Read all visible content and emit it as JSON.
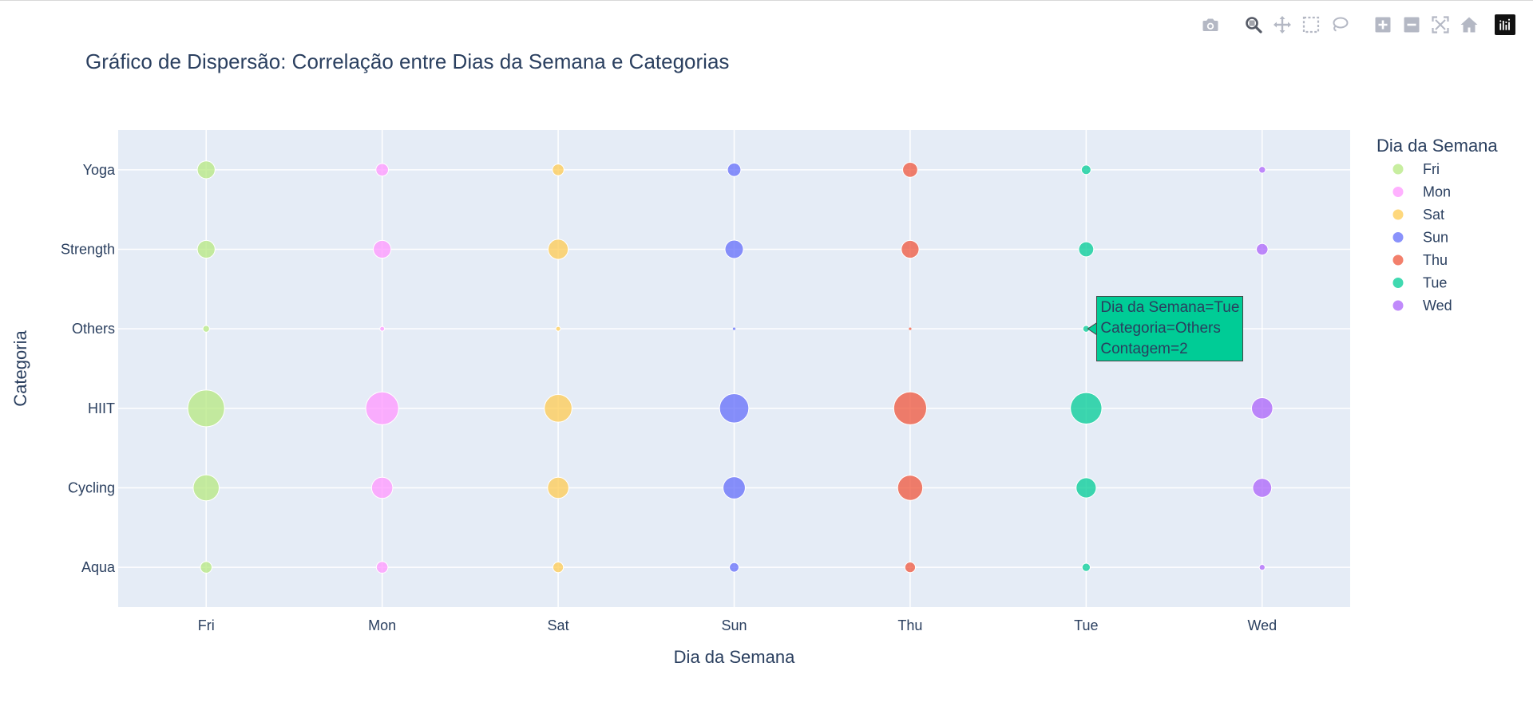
{
  "toolbar": {
    "buttons": [
      {
        "icon": "camera-icon",
        "label": "Download plot as png"
      },
      {
        "icon": "zoom-icon",
        "label": "Zoom",
        "active": true
      },
      {
        "icon": "pan-icon",
        "label": "Pan"
      },
      {
        "icon": "box-select-icon",
        "label": "Box Select"
      },
      {
        "icon": "lasso-select-icon",
        "label": "Lasso Select"
      },
      {
        "icon": "zoom-in-icon",
        "label": "Zoom in"
      },
      {
        "icon": "zoom-out-icon",
        "label": "Zoom out"
      },
      {
        "icon": "autoscale-icon",
        "label": "Autoscale"
      },
      {
        "icon": "reset-axes-icon",
        "label": "Reset axes"
      },
      {
        "icon": "plotly-logo-icon",
        "label": "Plotly"
      }
    ]
  },
  "chart_data": {
    "type": "scatter",
    "title": "Gráfico de Dispersão: Correlação entre Dias da Semana e Categorias",
    "xlabel": "Dia da Semana",
    "ylabel": "Categoria",
    "x_categories": [
      "Fri",
      "Mon",
      "Sat",
      "Sun",
      "Thu",
      "Tue",
      "Wed"
    ],
    "y_categories": [
      "Aqua",
      "Cycling",
      "HIIT",
      "Others",
      "Strength",
      "Yoga"
    ],
    "grid": true,
    "legend": {
      "title": "Dia da Semana",
      "placement": "right"
    },
    "size_metric": "Contagem",
    "series": [
      {
        "name": "Fri",
        "color": "#b6e880",
        "x": "Fri",
        "points": [
          {
            "y": "Yoga",
            "size": 14
          },
          {
            "y": "Strength",
            "size": 14
          },
          {
            "y": "Others",
            "size": 2
          },
          {
            "y": "HIIT",
            "size": 60
          },
          {
            "y": "Cycling",
            "size": 30
          },
          {
            "y": "Aqua",
            "size": 6
          }
        ]
      },
      {
        "name": "Mon",
        "color": "#ff97ff",
        "x": "Mon",
        "points": [
          {
            "y": "Yoga",
            "size": 7
          },
          {
            "y": "Strength",
            "size": 14
          },
          {
            "y": "Others",
            "size": 1
          },
          {
            "y": "HIIT",
            "size": 48
          },
          {
            "y": "Cycling",
            "size": 20
          },
          {
            "y": "Aqua",
            "size": 6
          }
        ]
      },
      {
        "name": "Sat",
        "color": "#fecb52",
        "x": "Sat",
        "points": [
          {
            "y": "Yoga",
            "size": 6
          },
          {
            "y": "Strength",
            "size": 18
          },
          {
            "y": "Others",
            "size": 1
          },
          {
            "y": "HIIT",
            "size": 34
          },
          {
            "y": "Cycling",
            "size": 20
          },
          {
            "y": "Aqua",
            "size": 5
          }
        ]
      },
      {
        "name": "Sun",
        "color": "#636efa",
        "x": "Sun",
        "points": [
          {
            "y": "Yoga",
            "size": 8
          },
          {
            "y": "Strength",
            "size": 15
          },
          {
            "y": "Others",
            "size": 0.3
          },
          {
            "y": "HIIT",
            "size": 38
          },
          {
            "y": "Cycling",
            "size": 22
          },
          {
            "y": "Aqua",
            "size": 4
          }
        ]
      },
      {
        "name": "Thu",
        "color": "#ef553b",
        "x": "Thu",
        "points": [
          {
            "y": "Yoga",
            "size": 10
          },
          {
            "y": "Strength",
            "size": 14
          },
          {
            "y": "Others",
            "size": 0.3
          },
          {
            "y": "HIIT",
            "size": 48
          },
          {
            "y": "Cycling",
            "size": 28
          },
          {
            "y": "Aqua",
            "size": 5
          }
        ]
      },
      {
        "name": "Tue",
        "color": "#00cc96",
        "x": "Tue",
        "points": [
          {
            "y": "Yoga",
            "size": 4
          },
          {
            "y": "Strength",
            "size": 10
          },
          {
            "y": "Others",
            "size": 2
          },
          {
            "y": "HIIT",
            "size": 44
          },
          {
            "y": "Cycling",
            "size": 18
          },
          {
            "y": "Aqua",
            "size": 3
          }
        ]
      },
      {
        "name": "Wed",
        "color": "#ab63fa",
        "x": "Wed",
        "points": [
          {
            "y": "Yoga",
            "size": 2
          },
          {
            "y": "Strength",
            "size": 6
          },
          {
            "y": "Others",
            "size": 0
          },
          {
            "y": "HIIT",
            "size": 20
          },
          {
            "y": "Cycling",
            "size": 16
          },
          {
            "y": "Aqua",
            "size": 1.5
          }
        ]
      }
    ],
    "hover": {
      "series": "Tue",
      "y": "Others",
      "lines": [
        "Dia da Semana=Tue",
        "Categoria=Others",
        "Contagem=2"
      ]
    }
  }
}
